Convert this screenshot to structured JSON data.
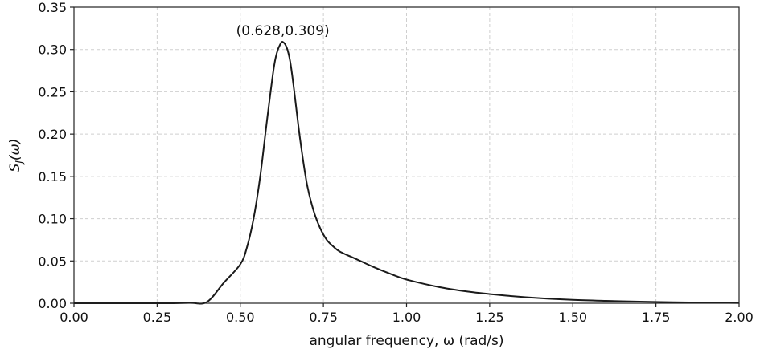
{
  "chart_data": {
    "type": "line",
    "xlabel": "angular frequency, ω (rad/s)",
    "ylabel": "S_J(ω)",
    "xlim": [
      0,
      2
    ],
    "ylim": [
      0,
      0.35
    ],
    "x_ticks": [
      "0.00",
      "0.25",
      "0.50",
      "0.75",
      "1.00",
      "1.25",
      "1.50",
      "1.75",
      "2.00"
    ],
    "y_ticks": [
      "0.00",
      "0.05",
      "0.10",
      "0.15",
      "0.20",
      "0.25",
      "0.30",
      "0.35"
    ],
    "grid": true,
    "series": [
      {
        "color": "#1a1a1a",
        "x": [
          0.0,
          0.1,
          0.2,
          0.3,
          0.35,
          0.4,
          0.45,
          0.5,
          0.52,
          0.54,
          0.56,
          0.58,
          0.6,
          0.61,
          0.62,
          0.628,
          0.64,
          0.65,
          0.66,
          0.68,
          0.7,
          0.72,
          0.74,
          0.76,
          0.78,
          0.8,
          0.85,
          0.9,
          0.95,
          1.0,
          1.1,
          1.2,
          1.3,
          1.4,
          1.5,
          1.6,
          1.7,
          1.8,
          1.9,
          2.0
        ],
        "y": [
          0.0,
          0.0,
          0.0,
          0.0,
          0.0005,
          0.0015,
          0.024,
          0.046,
          0.066,
          0.1,
          0.15,
          0.215,
          0.276,
          0.296,
          0.306,
          0.309,
          0.302,
          0.286,
          0.258,
          0.194,
          0.142,
          0.11,
          0.089,
          0.075,
          0.067,
          0.061,
          0.052,
          0.043,
          0.035,
          0.028,
          0.019,
          0.013,
          0.009,
          0.006,
          0.004,
          0.0028,
          0.0019,
          0.0012,
          0.0007,
          0.0004
        ]
      }
    ],
    "annotations": [
      {
        "text": "(0.628,0.309)",
        "x": 0.628,
        "y": 0.309
      }
    ]
  }
}
